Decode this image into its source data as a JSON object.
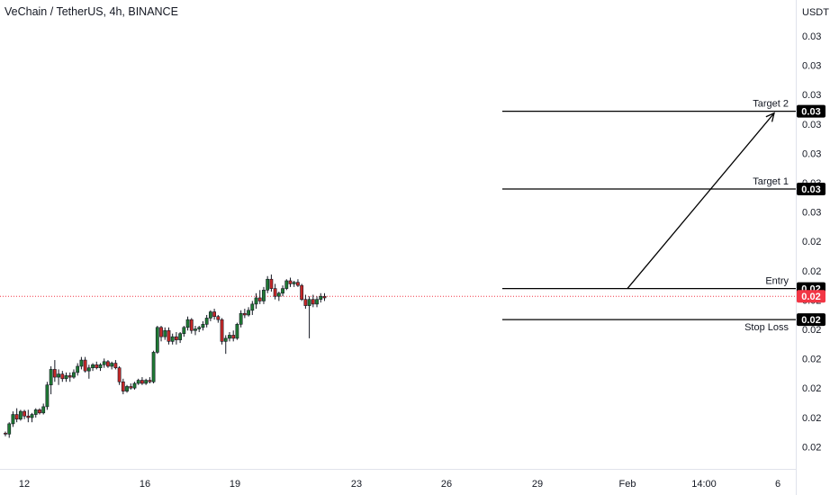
{
  "header": {
    "title": "VeChain / TetherUS, 4h, BINANCE"
  },
  "chart_data": {
    "type": "candlestick",
    "title": "VeChain / TetherUS, 4h, BINANCE",
    "currency": "USDT",
    "y_tick_labels": [
      "0.03",
      "0.03",
      "0.03",
      "0.03",
      "0.03",
      "0.03",
      "0.03",
      "0.02",
      "0.02",
      "0.02",
      "0.02",
      "0.02",
      "0.02",
      "0.02",
      "0.02"
    ],
    "x_tick_labels": [
      "12",
      "16",
      "19",
      "23",
      "26",
      "29",
      "Feb",
      "14:00",
      "6"
    ],
    "ylim": [
      0.018,
      0.0325
    ],
    "levels": [
      {
        "name": "Target 2",
        "value": 0.03,
        "price": 0.0295,
        "price_label": "0.03",
        "color": "#000000"
      },
      {
        "name": "Target 1",
        "value": 0.03,
        "price": 0.027,
        "price_label": "0.03",
        "color": "#000000"
      },
      {
        "name": "Entry",
        "value": 0.02,
        "price": 0.0238,
        "price_label": "0.02",
        "color": "#000000"
      },
      {
        "name": "Stop Loss",
        "value": 0.02,
        "price": 0.0228,
        "price_label": "0.02",
        "color": "#000000"
      }
    ],
    "current_price": {
      "value": 0.02,
      "price": 0.02355,
      "price_label": "0.02",
      "color": "#f23645"
    },
    "colors": {
      "up": "#26a69a",
      "up_body": "#1f7a34",
      "down": "#c62828",
      "background": "#ffffff"
    },
    "candles": [
      [
        0.01915,
        0.0192,
        0.01905,
        0.01912
      ],
      [
        0.01912,
        0.0195,
        0.019,
        0.01945
      ],
      [
        0.01945,
        0.01985,
        0.01935,
        0.01975
      ],
      [
        0.01975,
        0.01995,
        0.0195,
        0.0196
      ],
      [
        0.0196,
        0.0199,
        0.01955,
        0.01985
      ],
      [
        0.01985,
        0.0199,
        0.0196,
        0.0197
      ],
      [
        0.0197,
        0.0199,
        0.0195,
        0.01965
      ],
      [
        0.01965,
        0.0198,
        0.0195,
        0.01975
      ],
      [
        0.01975,
        0.01995,
        0.01965,
        0.0199
      ],
      [
        0.0199,
        0.01995,
        0.01975,
        0.0198
      ],
      [
        0.0198,
        0.0201,
        0.01975,
        0.02
      ],
      [
        0.02,
        0.0208,
        0.0199,
        0.0207
      ],
      [
        0.0207,
        0.0213,
        0.0204,
        0.0212
      ],
      [
        0.0212,
        0.0215,
        0.0208,
        0.02095
      ],
      [
        0.02095,
        0.0212,
        0.0207,
        0.02105
      ],
      [
        0.02105,
        0.02115,
        0.0208,
        0.0209
      ],
      [
        0.0209,
        0.0211,
        0.0208,
        0.021
      ],
      [
        0.021,
        0.0211,
        0.0208,
        0.02095
      ],
      [
        0.02095,
        0.0212,
        0.0209,
        0.0211
      ],
      [
        0.0211,
        0.0214,
        0.021,
        0.0213
      ],
      [
        0.0213,
        0.0216,
        0.0212,
        0.0215
      ],
      [
        0.0215,
        0.0216,
        0.0211,
        0.02115
      ],
      [
        0.02115,
        0.02135,
        0.0209,
        0.02125
      ],
      [
        0.02125,
        0.0214,
        0.02115,
        0.02135
      ],
      [
        0.02135,
        0.02145,
        0.0212,
        0.02125
      ],
      [
        0.02125,
        0.0214,
        0.02115,
        0.02135
      ],
      [
        0.02135,
        0.02155,
        0.02125,
        0.02145
      ],
      [
        0.02145,
        0.0215,
        0.02125,
        0.0213
      ],
      [
        0.0213,
        0.02145,
        0.0212,
        0.0214
      ],
      [
        0.0214,
        0.0215,
        0.0212,
        0.02125
      ],
      [
        0.02125,
        0.0213,
        0.0207,
        0.0208
      ],
      [
        0.0208,
        0.0209,
        0.0204,
        0.0205
      ],
      [
        0.0205,
        0.0207,
        0.02045,
        0.02065
      ],
      [
        0.02065,
        0.02075,
        0.02055,
        0.0206
      ],
      [
        0.0206,
        0.0208,
        0.02055,
        0.02075
      ],
      [
        0.02075,
        0.0209,
        0.0207,
        0.02085
      ],
      [
        0.02085,
        0.02095,
        0.0207,
        0.02075
      ],
      [
        0.02075,
        0.0209,
        0.0207,
        0.02085
      ],
      [
        0.02085,
        0.02095,
        0.02075,
        0.0208
      ],
      [
        0.0208,
        0.0218,
        0.02075,
        0.02175
      ],
      [
        0.02175,
        0.0226,
        0.0217,
        0.02255
      ],
      [
        0.02255,
        0.0226,
        0.0221,
        0.02225
      ],
      [
        0.02225,
        0.02255,
        0.02215,
        0.02245
      ],
      [
        0.02245,
        0.02255,
        0.022,
        0.0221
      ],
      [
        0.0221,
        0.02235,
        0.022,
        0.02225
      ],
      [
        0.02225,
        0.0224,
        0.022,
        0.02215
      ],
      [
        0.02215,
        0.0224,
        0.02205,
        0.02235
      ],
      [
        0.02235,
        0.0226,
        0.02225,
        0.02255
      ],
      [
        0.02255,
        0.0229,
        0.02245,
        0.0228
      ],
      [
        0.0228,
        0.02285,
        0.02235,
        0.02245
      ],
      [
        0.02245,
        0.0226,
        0.0223,
        0.0225
      ],
      [
        0.0225,
        0.0226,
        0.0224,
        0.02255
      ],
      [
        0.02255,
        0.02275,
        0.02245,
        0.02265
      ],
      [
        0.02265,
        0.02295,
        0.02255,
        0.02285
      ],
      [
        0.02285,
        0.0231,
        0.02275,
        0.02305
      ],
      [
        0.02305,
        0.02315,
        0.0228,
        0.0229
      ],
      [
        0.0229,
        0.02295,
        0.0227,
        0.0228
      ],
      [
        0.0228,
        0.02285,
        0.022,
        0.0221
      ],
      [
        0.0221,
        0.0223,
        0.0217,
        0.0222
      ],
      [
        0.0222,
        0.0224,
        0.0221,
        0.0223
      ],
      [
        0.0223,
        0.02245,
        0.0221,
        0.0222
      ],
      [
        0.0222,
        0.0227,
        0.02215,
        0.02265
      ],
      [
        0.02265,
        0.0231,
        0.02255,
        0.023
      ],
      [
        0.023,
        0.02315,
        0.02285,
        0.02295
      ],
      [
        0.02295,
        0.0232,
        0.0229,
        0.0231
      ],
      [
        0.0231,
        0.0234,
        0.02295,
        0.0233
      ],
      [
        0.0233,
        0.02365,
        0.02315,
        0.0235
      ],
      [
        0.0235,
        0.02375,
        0.0233,
        0.0234
      ],
      [
        0.0234,
        0.02385,
        0.0233,
        0.02375
      ],
      [
        0.02375,
        0.0242,
        0.02365,
        0.0241
      ],
      [
        0.0241,
        0.02425,
        0.0237,
        0.0238
      ],
      [
        0.0238,
        0.02395,
        0.02345,
        0.02355
      ],
      [
        0.02355,
        0.0237,
        0.0234,
        0.02365
      ],
      [
        0.02365,
        0.0239,
        0.02355,
        0.0238
      ],
      [
        0.0238,
        0.0241,
        0.02375,
        0.02405
      ],
      [
        0.02405,
        0.02415,
        0.02385,
        0.02395
      ],
      [
        0.02395,
        0.02405,
        0.02385,
        0.024
      ],
      [
        0.024,
        0.0241,
        0.02385,
        0.0239
      ],
      [
        0.0239,
        0.02395,
        0.0234,
        0.02345
      ],
      [
        0.02345,
        0.0236,
        0.02315,
        0.02325
      ],
      [
        0.02325,
        0.02355,
        0.0222,
        0.02345
      ],
      [
        0.02345,
        0.0236,
        0.0232,
        0.0233
      ],
      [
        0.0233,
        0.02355,
        0.0232,
        0.02345
      ],
      [
        0.02345,
        0.02365,
        0.02335,
        0.02355
      ],
      [
        0.02355,
        0.02365,
        0.0234,
        0.0235
      ]
    ]
  }
}
